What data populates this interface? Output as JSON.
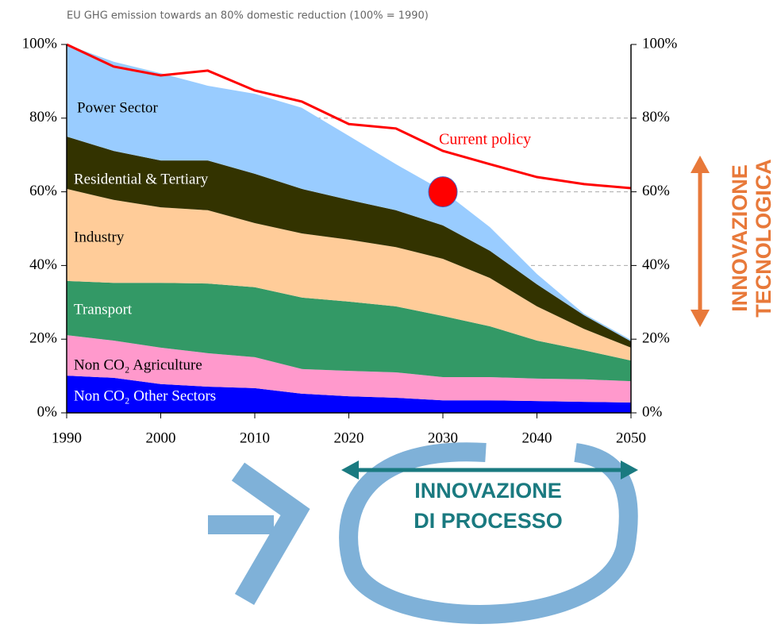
{
  "chart_data": {
    "type": "stacked_area",
    "title": "EU GHG emission towards an 80% domestic reduction  (100% = 1990)",
    "x": [
      1990,
      1995,
      2000,
      2005,
      2010,
      2015,
      2020,
      2025,
      2030,
      2035,
      2040,
      2045,
      2050
    ],
    "series": [
      {
        "name": "Non CO₂ Other Sectors",
        "color": "#0000ff",
        "values": [
          10.1,
          9.5,
          7.8,
          7.1,
          6.7,
          5.2,
          4.5,
          4.1,
          3.4,
          3.4,
          3.2,
          3.0,
          2.8
        ]
      },
      {
        "name": "Non CO₂ Agriculture",
        "color": "#ff99cc",
        "values": [
          11.0,
          10.1,
          9.9,
          9.1,
          8.4,
          6.7,
          6.9,
          6.9,
          6.3,
          6.3,
          6.1,
          6.1,
          5.8
        ]
      },
      {
        "name": "Transport",
        "color": "#339966",
        "values": [
          14.7,
          15.7,
          17.6,
          18.9,
          19.0,
          19.4,
          18.8,
          17.9,
          16.6,
          13.8,
          10.3,
          7.9,
          5.6
        ]
      },
      {
        "name": "Industry",
        "color": "#ffcc99",
        "values": [
          25.0,
          22.5,
          20.5,
          19.9,
          17.4,
          17.4,
          16.8,
          16.1,
          15.5,
          13.1,
          9.3,
          5.8,
          3.5
        ]
      },
      {
        "name": "Residential & Tertiary",
        "color": "#333300",
        "values": [
          14.2,
          13.3,
          12.7,
          13.5,
          13.4,
          12.1,
          10.8,
          10.0,
          9.1,
          7.4,
          6.0,
          3.7,
          1.7
        ]
      },
      {
        "name": "Power Sector",
        "color": "#99ccff",
        "values": [
          25.0,
          24.2,
          23.7,
          20.3,
          21.7,
          22.0,
          17.4,
          12.5,
          9.4,
          6.4,
          2.8,
          0.4,
          0.4
        ]
      }
    ],
    "line": {
      "name": "Current policy",
      "color": "#ff0000",
      "values": [
        100,
        94,
        91.6,
        92.9,
        87.5,
        84.5,
        78.4,
        77.2,
        71.1,
        67.5,
        64,
        62.1,
        61
      ]
    },
    "marker": {
      "x": 2030,
      "y": 60,
      "color": "#ff0000"
    },
    "xlim": [
      1990,
      2050
    ],
    "xticks": [
      1990,
      2000,
      2010,
      2020,
      2030,
      2040,
      2050
    ],
    "ylim": [
      0,
      100
    ],
    "yticks": [
      {
        "value": 0,
        "label": "0%"
      },
      {
        "value": 20,
        "label": "20%"
      },
      {
        "value": 40,
        "label": "40%"
      },
      {
        "value": 60,
        "label": "60%"
      },
      {
        "value": 80,
        "label": "80%"
      },
      {
        "value": 100,
        "label": "100%"
      }
    ],
    "y2lim": [
      0,
      100
    ],
    "y2ticks": [
      {
        "value": 0,
        "label": "0%"
      },
      {
        "value": 20,
        "label": "20%"
      },
      {
        "value": 40,
        "label": "40%"
      },
      {
        "value": 60,
        "label": "60%"
      },
      {
        "value": 80,
        "label": "80%"
      },
      {
        "value": 100,
        "label": "100%"
      }
    ],
    "grid": true,
    "annotations": [
      "INNOVAZIONE",
      "TECNOLOGICA",
      "INNOVAZIONE",
      "DI PROCESSO"
    ]
  }
}
